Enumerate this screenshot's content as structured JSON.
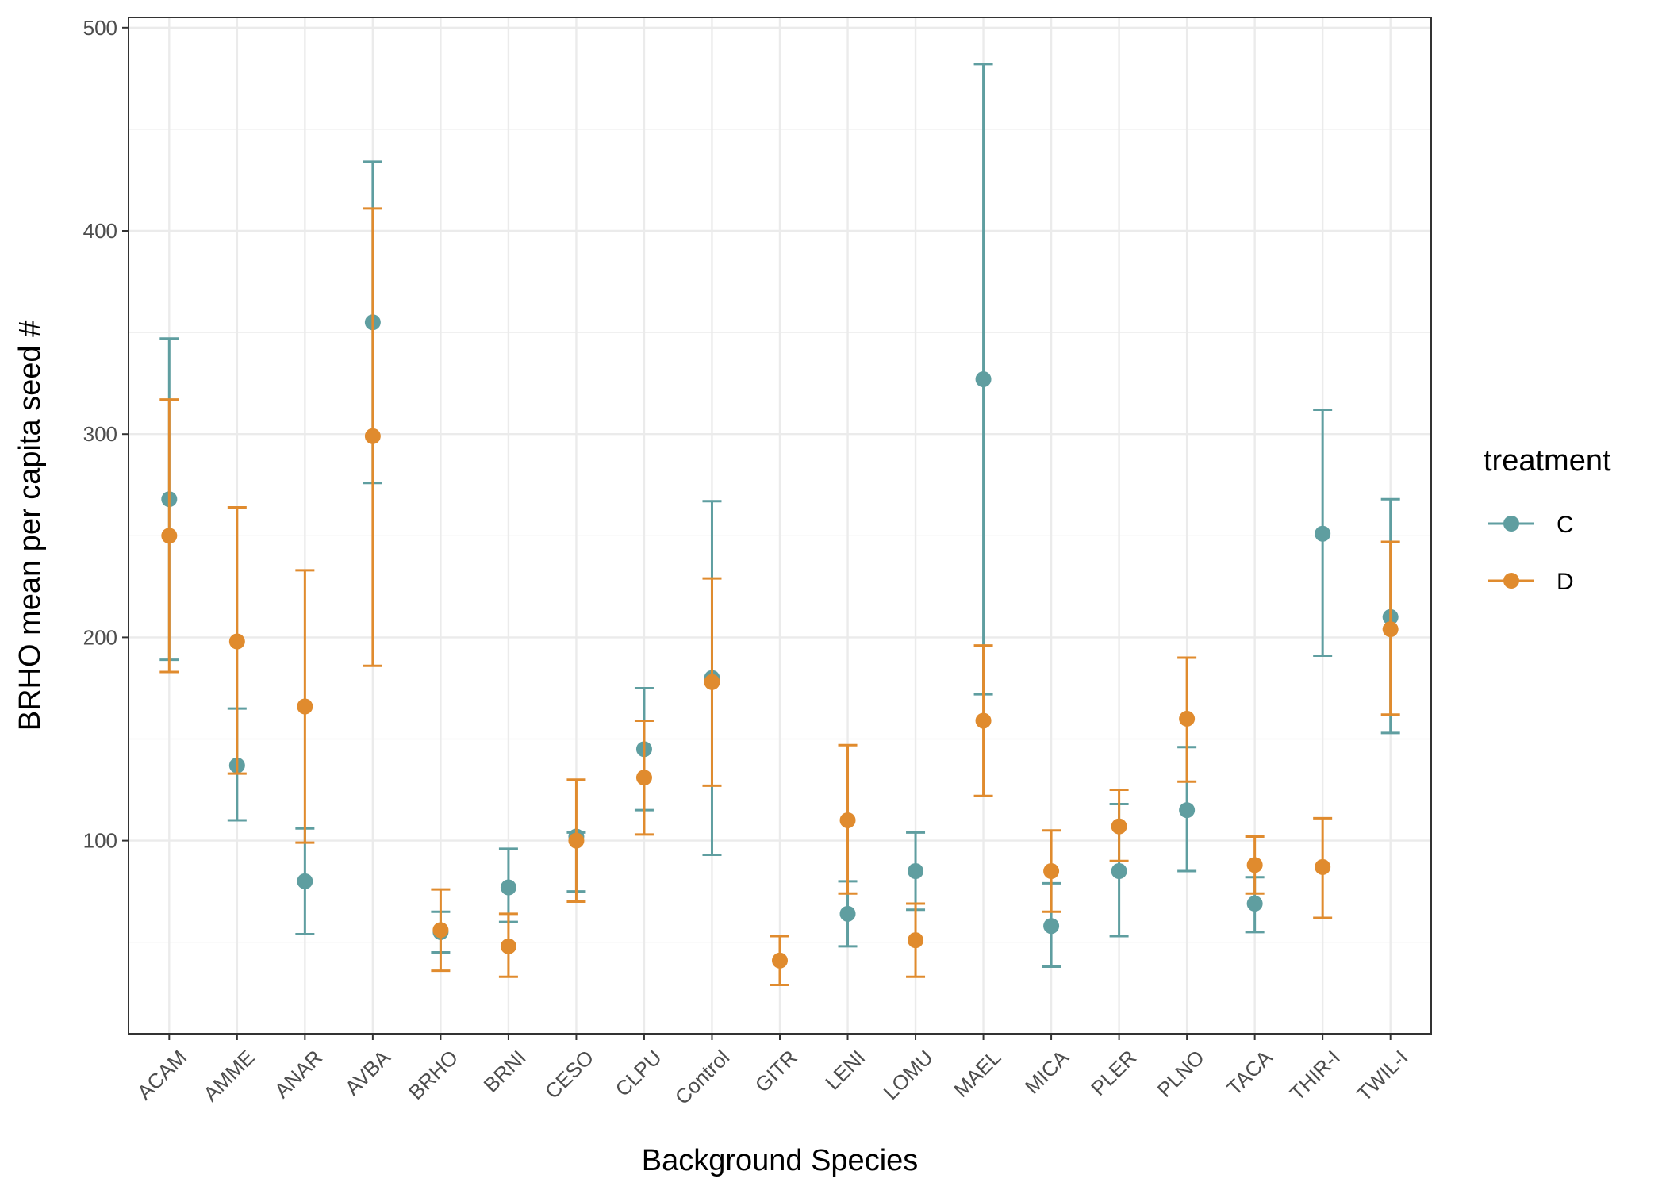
{
  "chart_data": {
    "type": "scatter",
    "title": "",
    "xlabel": "Background Species",
    "ylabel": "BRHO mean per capita seed #",
    "ylim": [
      5,
      505
    ],
    "yticks": [
      100,
      200,
      300,
      400,
      500
    ],
    "grid": true,
    "categories": [
      "ACAM",
      "AMME",
      "ANAR",
      "AVBA",
      "BRHO",
      "BRNI",
      "CESO",
      "CLPU",
      "Control",
      "GITR",
      "LENI",
      "LOMU",
      "MAEL",
      "MICA",
      "PLER",
      "PLNO",
      "TACA",
      "THIR-I",
      "TWIL-I"
    ],
    "legend": {
      "title": "treatment",
      "position": "right"
    },
    "series": [
      {
        "name": "C",
        "color": "#5F9EA0",
        "values": [
          268,
          137,
          80,
          355,
          55,
          77,
          102,
          145,
          180,
          null,
          64,
          85,
          327,
          58,
          85,
          115,
          69,
          251,
          210
        ],
        "lower": [
          189,
          110,
          54,
          276,
          45,
          60,
          75,
          115,
          93,
          null,
          48,
          66,
          172,
          38,
          53,
          85,
          55,
          191,
          153
        ],
        "upper": [
          347,
          165,
          106,
          434,
          65,
          96,
          104,
          175,
          267,
          null,
          80,
          104,
          482,
          79,
          118,
          146,
          82,
          312,
          268
        ]
      },
      {
        "name": "D",
        "color": "#E08B2E",
        "values": [
          250,
          198,
          166,
          299,
          56,
          48,
          100,
          131,
          178,
          41,
          110,
          51,
          159,
          85,
          107,
          160,
          88,
          87,
          204
        ],
        "lower": [
          183,
          133,
          99,
          186,
          36,
          33,
          70,
          103,
          127,
          29,
          74,
          33,
          122,
          65,
          90,
          129,
          74,
          62,
          162
        ],
        "upper": [
          317,
          264,
          233,
          411,
          76,
          64,
          130,
          159,
          229,
          53,
          147,
          69,
          196,
          105,
          125,
          190,
          102,
          111,
          247
        ]
      }
    ]
  }
}
